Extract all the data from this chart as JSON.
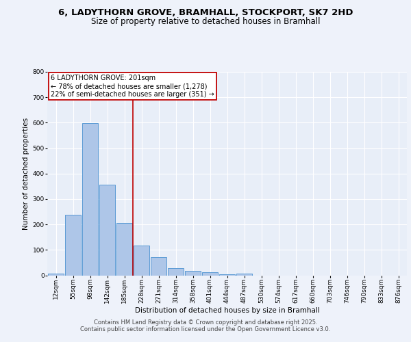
{
  "title_line1": "6, LADYTHORN GROVE, BRAMHALL, STOCKPORT, SK7 2HD",
  "title_line2": "Size of property relative to detached houses in Bramhall",
  "xlabel": "Distribution of detached houses by size in Bramhall",
  "ylabel": "Number of detached properties",
  "bin_labels": [
    "12sqm",
    "55sqm",
    "98sqm",
    "142sqm",
    "185sqm",
    "228sqm",
    "271sqm",
    "314sqm",
    "358sqm",
    "401sqm",
    "444sqm",
    "487sqm",
    "530sqm",
    "574sqm",
    "617sqm",
    "660sqm",
    "703sqm",
    "746sqm",
    "790sqm",
    "833sqm",
    "876sqm"
  ],
  "bar_values": [
    8,
    238,
    598,
    355,
    207,
    118,
    72,
    28,
    18,
    12,
    3,
    8,
    0,
    0,
    0,
    0,
    0,
    0,
    0,
    0,
    0
  ],
  "bar_color": "#aec6e8",
  "bar_edge_color": "#5b9bd5",
  "vline_x": 4.5,
  "vline_color": "#c00000",
  "annotation_text": "6 LADYTHORN GROVE: 201sqm\n← 78% of detached houses are smaller (1,278)\n22% of semi-detached houses are larger (351) →",
  "annotation_box_color": "#c00000",
  "annotation_text_color": "#000000",
  "ylim": [
    0,
    800
  ],
  "yticks": [
    0,
    100,
    200,
    300,
    400,
    500,
    600,
    700,
    800
  ],
  "footer_line1": "Contains HM Land Registry data © Crown copyright and database right 2025.",
  "footer_line2": "Contains public sector information licensed under the Open Government Licence v3.0.",
  "bg_color": "#eef2fa",
  "plot_bg_color": "#e8eef8",
  "grid_color": "#ffffff",
  "title_fontsize": 9.5,
  "subtitle_fontsize": 8.5,
  "axis_label_fontsize": 7.5,
  "tick_fontsize": 6.5,
  "annotation_fontsize": 7.0,
  "footer_fontsize": 6.0
}
